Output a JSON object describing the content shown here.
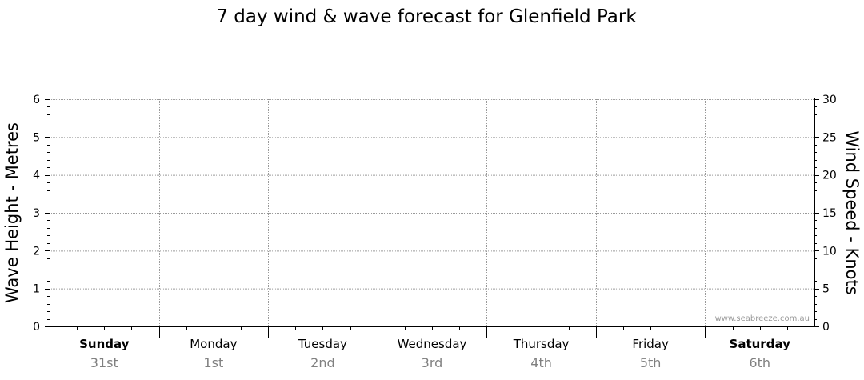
{
  "chart_data": {
    "type": "line",
    "title": "7 day wind & wave forecast for Glenfield Park",
    "left_axis": {
      "label": "Wave Height - Metres",
      "min": 0,
      "max": 6,
      "ticks": [
        0,
        1,
        2,
        3,
        4,
        5,
        6
      ]
    },
    "right_axis": {
      "label": "Wind Speed - Knots",
      "min": 0,
      "max": 30,
      "ticks": [
        0,
        5,
        10,
        15,
        20,
        25,
        30
      ]
    },
    "days": [
      {
        "name": "Sunday",
        "date": "31st",
        "bold": true
      },
      {
        "name": "Monday",
        "date": "1st",
        "bold": false
      },
      {
        "name": "Tuesday",
        "date": "2nd",
        "bold": false
      },
      {
        "name": "Wednesday",
        "date": "3rd",
        "bold": false
      },
      {
        "name": "Thursday",
        "date": "4th",
        "bold": false
      },
      {
        "name": "Friday",
        "date": "5th",
        "bold": false
      },
      {
        "name": "Saturday",
        "date": "6th",
        "bold": true
      }
    ],
    "series": [],
    "grid": true,
    "watermark": "www.seabreeze.com.au",
    "colors": {
      "grid": "#999999",
      "axis": "#000000",
      "date_text": "#808080"
    }
  }
}
